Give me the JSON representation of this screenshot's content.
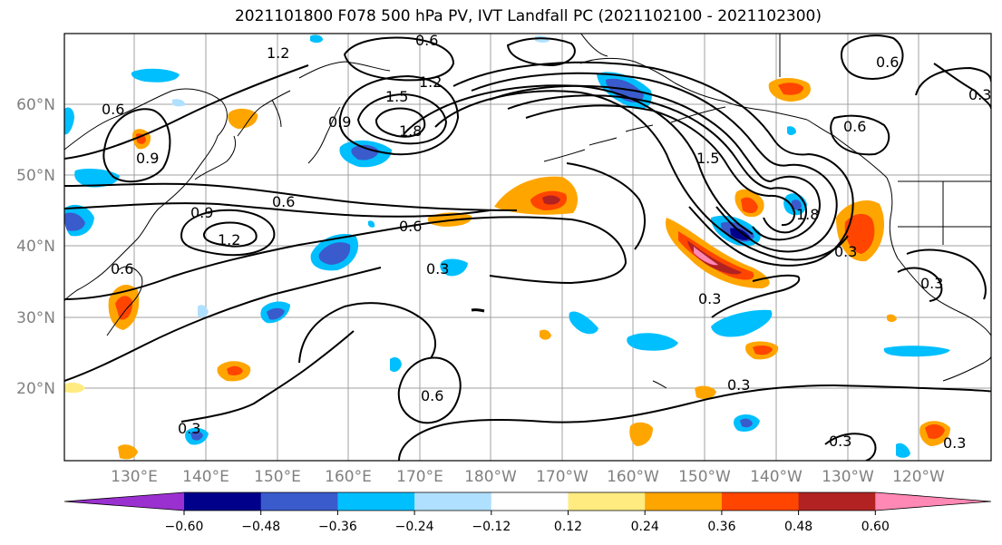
{
  "title": "2021101800 F078 500 hPa PV, IVT Landfall PC (2021102100 - 2021102300)",
  "map": {
    "lon_labels": [
      "130°E",
      "140°E",
      "150°E",
      "160°E",
      "170°E",
      "180°W",
      "170°W",
      "160°W",
      "150°W",
      "140°W",
      "130°W",
      "120°W"
    ],
    "lat_labels": [
      "60°N",
      "50°N",
      "40°N",
      "30°N",
      "20°N"
    ],
    "contour_labels": [
      "0.6",
      "1.2",
      "1.5",
      "1.8",
      "0.9",
      "0.6",
      "1.2",
      "0.9",
      "0.6",
      "0.9",
      "1.2",
      "0.6",
      "0.6",
      "0.3",
      "0.3",
      "0.6",
      "0.3",
      "0.3",
      "0.3",
      "0.6",
      "0.3",
      "0.3",
      "0.3",
      "0.3",
      "0.6",
      "1.5",
      "1.8"
    ]
  },
  "colorbar": {
    "labels": [
      "−0.60",
      "−0.48",
      "−0.36",
      "−0.24",
      "−0.12",
      "0.12",
      "0.24",
      "0.36",
      "0.48",
      "0.60"
    ],
    "colors": [
      "#9b30d0",
      "#00008b",
      "#3a5bcc",
      "#00bfff",
      "#b0e0ff",
      "#ffffff",
      "#ffeb80",
      "#ffa500",
      "#ff4500",
      "#b22222",
      "#ff88b4",
      "#ff88b4"
    ]
  }
}
